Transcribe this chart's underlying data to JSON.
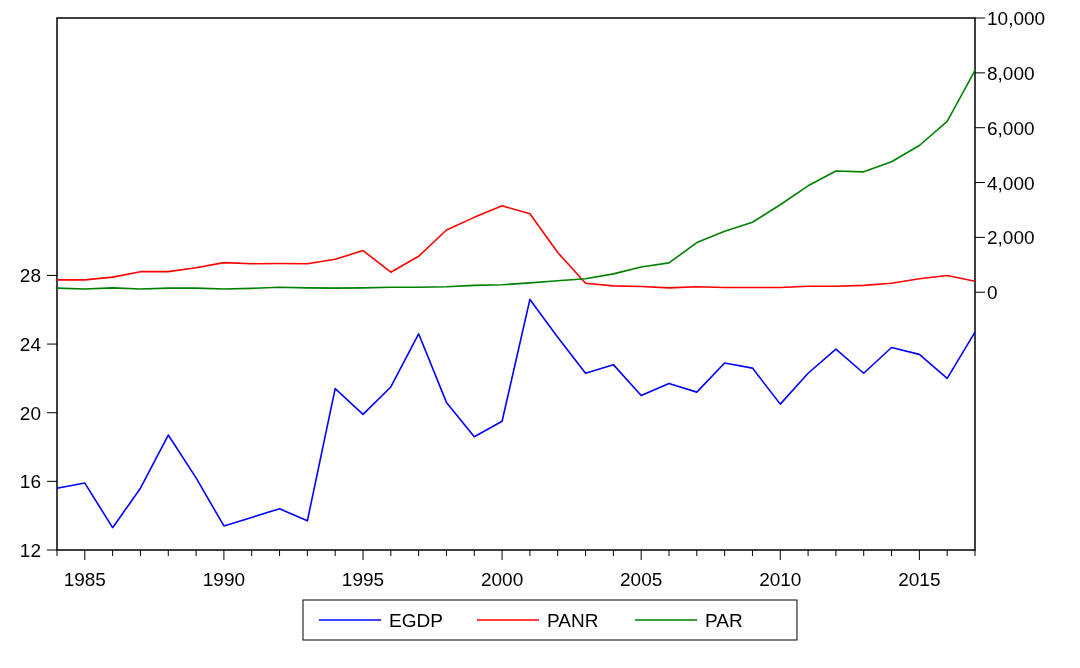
{
  "chart_data": {
    "type": "line",
    "x": [
      1984,
      1985,
      1986,
      1987,
      1988,
      1989,
      1990,
      1991,
      1992,
      1993,
      1994,
      1995,
      1996,
      1997,
      1998,
      1999,
      2000,
      2001,
      2002,
      2003,
      2004,
      2005,
      2006,
      2007,
      2008,
      2009,
      2010,
      2011,
      2012,
      2013,
      2014,
      2015,
      2016,
      2017
    ],
    "series": [
      {
        "name": "EGDP",
        "color": "#0000ff",
        "values": [
          15.6,
          15.9,
          13.3,
          15.6,
          18.7,
          16.2,
          13.4,
          13.9,
          14.4,
          13.7,
          21.4,
          19.9,
          21.5,
          24.6,
          20.6,
          18.6,
          19.5,
          26.6,
          24.4,
          22.3,
          22.8,
          21.0,
          21.7,
          21.2,
          22.9,
          22.6,
          20.5,
          22.3,
          23.7,
          22.3,
          23.8,
          23.4,
          22.0,
          24.7
        ]
      },
      {
        "name": "PANR",
        "color": "#ff0000",
        "axis": "y2",
        "values": [
          450,
          450,
          550,
          750,
          750,
          890,
          1080,
          1040,
          1050,
          1040,
          1200,
          1520,
          730,
          1310,
          2270,
          2730,
          3150,
          2860,
          1450,
          330,
          230,
          210,
          160,
          200,
          170,
          170,
          170,
          220,
          220,
          250,
          330,
          490,
          610,
          400
        ]
      },
      {
        "name": "PAR",
        "color": "#008000",
        "axis": "y2",
        "values": [
          150,
          120,
          160,
          120,
          150,
          150,
          120,
          140,
          180,
          160,
          150,
          160,
          180,
          180,
          200,
          250,
          270,
          340,
          420,
          490,
          670,
          920,
          1070,
          1810,
          2220,
          2550,
          3190,
          3880,
          4420,
          4390,
          4760,
          5350,
          6230,
          8090
        ]
      }
    ],
    "xlim": [
      1984,
      2017
    ],
    "xticks": [
      {
        "value": 1984,
        "label": null
      },
      1985,
      {
        "value": 1986,
        "label": null
      },
      {
        "value": 1987,
        "label": null
      },
      {
        "value": 1988,
        "label": null
      },
      {
        "value": 1989,
        "label": null
      },
      1990,
      {
        "value": 1991,
        "label": null
      },
      {
        "value": 1992,
        "label": null
      },
      {
        "value": 1993,
        "label": null
      },
      {
        "value": 1994,
        "label": null
      },
      1995,
      {
        "value": 1996,
        "label": null
      },
      {
        "value": 1997,
        "label": null
      },
      {
        "value": 1998,
        "label": null
      },
      {
        "value": 1999,
        "label": null
      },
      2000,
      {
        "value": 2001,
        "label": null
      },
      {
        "value": 2002,
        "label": null
      },
      {
        "value": 2003,
        "label": null
      },
      {
        "value": 2004,
        "label": null
      },
      2005,
      {
        "value": 2006,
        "label": null
      },
      {
        "value": 2007,
        "label": null
      },
      {
        "value": 2008,
        "label": null
      },
      {
        "value": 2009,
        "label": null
      },
      2010,
      {
        "value": 2011,
        "label": null
      },
      {
        "value": 2012,
        "label": null
      },
      {
        "value": 2013,
        "label": null
      },
      {
        "value": 2014,
        "label": null
      },
      2015,
      {
        "value": 2016,
        "label": null
      },
      {
        "value": 2017,
        "label": null
      }
    ],
    "ylim": [
      12,
      43
    ],
    "yticks": [
      12,
      16,
      20,
      24,
      28
    ],
    "y2lim": [
      -9400,
      10000
    ],
    "y2ticks": [
      0,
      {
        "value": 2000,
        "label": "2,000"
      },
      {
        "value": 4000,
        "label": "4,000"
      },
      {
        "value": 6000,
        "label": "6,000"
      },
      {
        "value": 8000,
        "label": "8,000"
      },
      {
        "value": 10000,
        "label": "10,000"
      }
    ],
    "legend": "bottom",
    "grid": false
  }
}
